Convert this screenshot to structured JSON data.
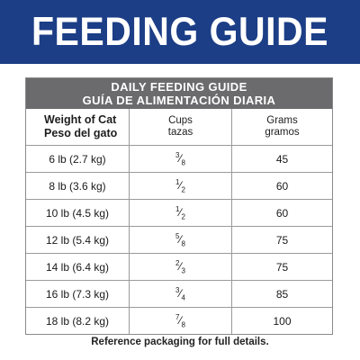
{
  "banner": {
    "title": "FEEDING GUIDE"
  },
  "table": {
    "header_en": "DAILY FEEDING GUIDE",
    "header_es": "GUÍA DE ALIMENTACIÓN DIARIA",
    "columns": {
      "weight_en": "Weight of Cat",
      "weight_es": "Peso del gato",
      "cups_en": "Cups",
      "cups_es": "tazas",
      "grams_en": "Grams",
      "grams_es": "gramos"
    },
    "rows": [
      {
        "weight": "6 lb (2.7 kg)",
        "cups_num": "3",
        "cups_den": "8",
        "grams": "45"
      },
      {
        "weight": "8 lb (3.6 kg)",
        "cups_num": "1",
        "cups_den": "2",
        "grams": "60"
      },
      {
        "weight": "10 lb (4.5 kg)",
        "cups_num": "1",
        "cups_den": "2",
        "grams": "60"
      },
      {
        "weight": "12 lb (5.4 kg)",
        "cups_num": "5",
        "cups_den": "8",
        "grams": "75"
      },
      {
        "weight": "14 lb (6.4 kg)",
        "cups_num": "2",
        "cups_den": "3",
        "grams": "75"
      },
      {
        "weight": "16 lb (7.3 kg)",
        "cups_num": "3",
        "cups_den": "4",
        "grams": "85"
      },
      {
        "weight": "18 lb (8.2 kg)",
        "cups_num": "7",
        "cups_den": "8",
        "grams": "100"
      }
    ]
  },
  "footnote": "Reference packaging for full details.",
  "colors": {
    "banner": "#1c3e86",
    "table_header": "#6b6b6d"
  }
}
